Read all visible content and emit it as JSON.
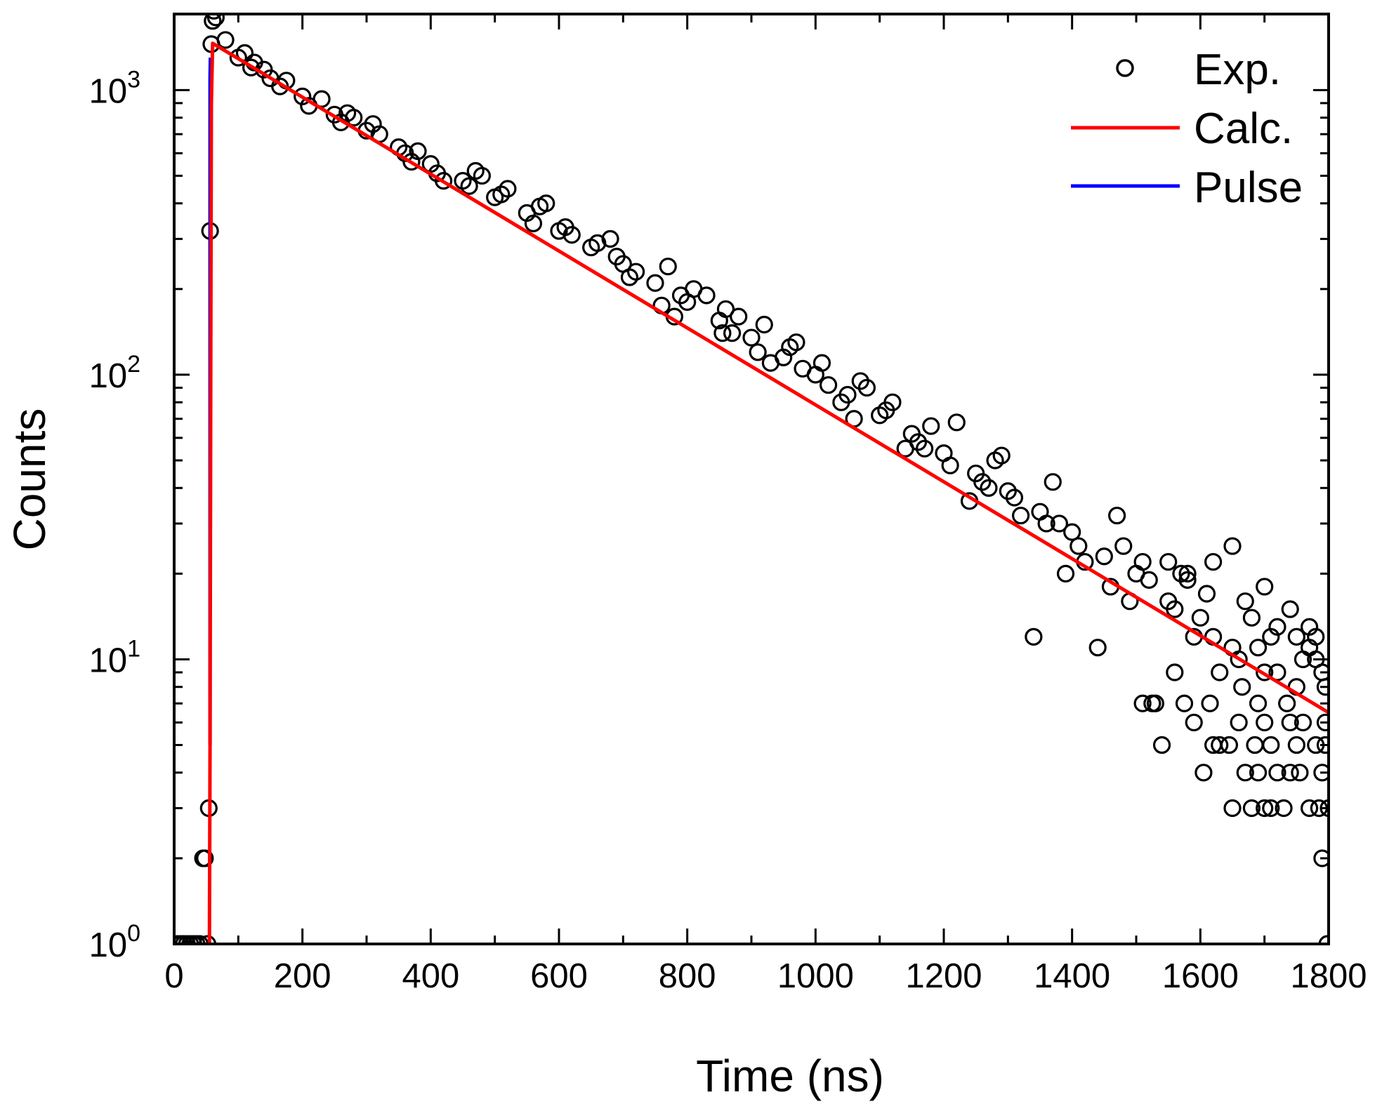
{
  "chart_data": {
    "type": "scatter",
    "title": "",
    "xlabel": "Time (ns)",
    "ylabel": "Counts",
    "xlim": [
      0,
      1800
    ],
    "ylim": [
      1,
      1850
    ],
    "yscale": "log",
    "grid": false,
    "legend_position": "top-right",
    "x_ticks": [
      0,
      200,
      400,
      600,
      800,
      1000,
      1200,
      1400,
      1600,
      1800
    ],
    "x_tick_labels": [
      "0",
      "200",
      "400",
      "600",
      "800",
      "1000",
      "1200",
      "1400",
      "1600",
      "1800"
    ],
    "y_ticks": [
      {
        "value": 1,
        "base": "10",
        "exp": "0"
      },
      {
        "value": 10,
        "base": "10",
        "exp": "1"
      },
      {
        "value": 100,
        "base": "10",
        "exp": "2"
      },
      {
        "value": 1000,
        "base": "10",
        "exp": "3"
      }
    ],
    "series": [
      {
        "name": "Exp.",
        "kind": "scatter",
        "marker": "open-circle",
        "color": "#000000",
        "points": [
          [
            5,
            1
          ],
          [
            10,
            1
          ],
          [
            15,
            1
          ],
          [
            20,
            1
          ],
          [
            25,
            1
          ],
          [
            30,
            1
          ],
          [
            35,
            1
          ],
          [
            40,
            1
          ],
          [
            45,
            2
          ],
          [
            48,
            2
          ],
          [
            52,
            1
          ],
          [
            54,
            3
          ],
          [
            56,
            320
          ],
          [
            58,
            1450
          ],
          [
            60,
            1750
          ],
          [
            62,
            1900
          ],
          [
            65,
            1800
          ],
          [
            80,
            1500
          ],
          [
            100,
            1300
          ],
          [
            120,
            1200
          ],
          [
            150,
            1100
          ],
          [
            200,
            950
          ],
          [
            250,
            820
          ],
          [
            300,
            720
          ],
          [
            350,
            630
          ],
          [
            400,
            550
          ],
          [
            450,
            480
          ],
          [
            500,
            420
          ],
          [
            550,
            370
          ],
          [
            600,
            320
          ],
          [
            650,
            280
          ],
          [
            700,
            245
          ],
          [
            750,
            210
          ],
          [
            800,
            180
          ],
          [
            850,
            155
          ],
          [
            900,
            135
          ],
          [
            950,
            115
          ],
          [
            1000,
            100
          ],
          [
            1050,
            85
          ],
          [
            1100,
            72
          ],
          [
            1150,
            62
          ],
          [
            1200,
            53
          ],
          [
            1250,
            45
          ],
          [
            1300,
            39
          ],
          [
            1350,
            33
          ],
          [
            1400,
            28
          ],
          [
            1450,
            23
          ],
          [
            1500,
            20
          ],
          [
            1550,
            16
          ],
          [
            1600,
            14
          ],
          [
            1650,
            11
          ],
          [
            1700,
            9
          ],
          [
            1750,
            8
          ],
          [
            1795,
            6
          ],
          [
            110,
            1350
          ],
          [
            140,
            1180
          ],
          [
            175,
            1080
          ],
          [
            230,
            930
          ],
          [
            270,
            830
          ],
          [
            320,
            700
          ],
          [
            370,
            560
          ],
          [
            420,
            480
          ],
          [
            470,
            520
          ],
          [
            520,
            450
          ],
          [
            570,
            390
          ],
          [
            620,
            310
          ],
          [
            680,
            300
          ],
          [
            720,
            230
          ],
          [
            770,
            240
          ],
          [
            830,
            190
          ],
          [
            870,
            140
          ],
          [
            920,
            150
          ],
          [
            970,
            130
          ],
          [
            1020,
            92
          ],
          [
            1070,
            95
          ],
          [
            1120,
            80
          ],
          [
            1170,
            55
          ],
          [
            1220,
            68
          ],
          [
            1270,
            40
          ],
          [
            1320,
            32
          ],
          [
            1370,
            42
          ],
          [
            1420,
            22
          ],
          [
            1470,
            32
          ],
          [
            1520,
            19
          ],
          [
            1570,
            20
          ],
          [
            1620,
            12
          ],
          [
            1670,
            16
          ],
          [
            1720,
            13
          ],
          [
            1770,
            11
          ],
          [
            1790,
            9
          ],
          [
            125,
            1250
          ],
          [
            165,
            1030
          ],
          [
            210,
            880
          ],
          [
            260,
            770
          ],
          [
            310,
            760
          ],
          [
            360,
            600
          ],
          [
            410,
            510
          ],
          [
            460,
            460
          ],
          [
            510,
            430
          ],
          [
            560,
            340
          ],
          [
            610,
            330
          ],
          [
            660,
            290
          ],
          [
            710,
            220
          ],
          [
            760,
            175
          ],
          [
            810,
            200
          ],
          [
            860,
            170
          ],
          [
            910,
            120
          ],
          [
            960,
            125
          ],
          [
            1010,
            110
          ],
          [
            1060,
            70
          ],
          [
            1110,
            75
          ],
          [
            1160,
            58
          ],
          [
            1210,
            48
          ],
          [
            1260,
            42
          ],
          [
            1310,
            37
          ],
          [
            1360,
            30
          ],
          [
            1410,
            25
          ],
          [
            1460,
            18
          ],
          [
            1510,
            22
          ],
          [
            1560,
            15
          ],
          [
            1610,
            17
          ],
          [
            1660,
            10
          ],
          [
            1710,
            12
          ],
          [
            1760,
            10
          ],
          [
            280,
            800
          ],
          [
            380,
            610
          ],
          [
            480,
            500
          ],
          [
            580,
            400
          ],
          [
            690,
            260
          ],
          [
            790,
            190
          ],
          [
            880,
            160
          ],
          [
            980,
            105
          ],
          [
            1080,
            90
          ],
          [
            1180,
            66
          ],
          [
            1280,
            50
          ],
          [
            1380,
            30
          ],
          [
            1480,
            25
          ],
          [
            1580,
            19
          ],
          [
            1680,
            14
          ],
          [
            1780,
            12
          ],
          [
            780,
            160
          ],
          [
            855,
            140
          ],
          [
            930,
            110
          ],
          [
            1040,
            80
          ],
          [
            1140,
            55
          ],
          [
            1240,
            36
          ],
          [
            1290,
            52
          ],
          [
            1340,
            12
          ],
          [
            1390,
            20
          ],
          [
            1440,
            11
          ],
          [
            1490,
            16
          ],
          [
            1530,
            7
          ],
          [
            1590,
            12
          ],
          [
            1630,
            9
          ],
          [
            1690,
            7
          ],
          [
            1740,
            6
          ],
          [
            1510,
            7
          ],
          [
            1525,
            7
          ],
          [
            1540,
            5
          ],
          [
            1560,
            9
          ],
          [
            1575,
            7
          ],
          [
            1590,
            6
          ],
          [
            1605,
            4
          ],
          [
            1615,
            7
          ],
          [
            1620,
            5
          ],
          [
            1630,
            5
          ],
          [
            1645,
            5
          ],
          [
            1650,
            3
          ],
          [
            1660,
            6
          ],
          [
            1670,
            4
          ],
          [
            1680,
            3
          ],
          [
            1685,
            5
          ],
          [
            1690,
            4
          ],
          [
            1700,
            6
          ],
          [
            1710,
            5
          ],
          [
            1720,
            4
          ],
          [
            1730,
            3
          ],
          [
            1735,
            7
          ],
          [
            1740,
            4
          ],
          [
            1750,
            5
          ],
          [
            1755,
            4
          ],
          [
            1760,
            6
          ],
          [
            1770,
            3
          ],
          [
            1780,
            5
          ],
          [
            1785,
            3
          ],
          [
            1790,
            4
          ],
          [
            1795,
            5
          ],
          [
            1800,
            3
          ],
          [
            1790,
            2
          ],
          [
            1798,
            1
          ],
          [
            1700,
            3
          ],
          [
            1710,
            3
          ],
          [
            1665,
            8
          ],
          [
            1690,
            11
          ],
          [
            1720,
            9
          ],
          [
            1750,
            12
          ],
          [
            1780,
            10
          ],
          [
            1795,
            8
          ],
          [
            1700,
            18
          ],
          [
            1740,
            15
          ],
          [
            1770,
            13
          ],
          [
            1620,
            22
          ],
          [
            1650,
            25
          ],
          [
            1580,
            20
          ],
          [
            1550,
            22
          ]
        ]
      },
      {
        "name": "Calc.",
        "kind": "line",
        "color": "#ff0000",
        "points": [
          [
            52,
            1
          ],
          [
            55,
            1
          ],
          [
            56,
            5
          ],
          [
            57,
            100
          ],
          [
            58,
            900
          ],
          [
            60,
            1460
          ],
          [
            1800,
            6.5
          ]
        ]
      },
      {
        "name": "Pulse",
        "kind": "line",
        "color": "#0000ff",
        "points": [
          [
            56,
            5
          ],
          [
            56,
            60
          ],
          [
            56,
            120
          ],
          [
            56,
            1100
          ],
          [
            56.5,
            1300
          ]
        ]
      }
    ]
  }
}
